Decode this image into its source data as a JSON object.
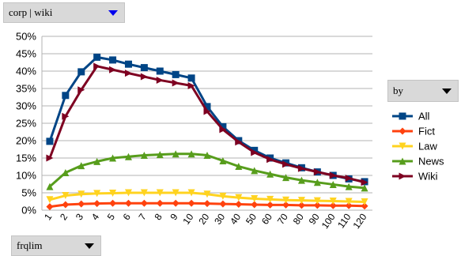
{
  "controls": {
    "corpus_select": {
      "value": "corp | wiki",
      "icon": "triangle-down-icon",
      "arrow_color": "#0000ee"
    },
    "by_select": {
      "value": "by",
      "icon": "triangle-down-icon"
    },
    "frqlim_select": {
      "value": "frqlim",
      "icon": "triangle-down-icon"
    }
  },
  "chart_data": {
    "type": "line",
    "title": "",
    "xlabel": "",
    "ylabel": "",
    "categories": [
      "1",
      "2",
      "3",
      "4",
      "5",
      "6",
      "7",
      "8",
      "9",
      "10",
      "20",
      "30",
      "40",
      "50",
      "60",
      "70",
      "80",
      "90",
      "100",
      "110",
      "120"
    ],
    "ylim": [
      0,
      50
    ],
    "yticks": [
      0,
      5,
      10,
      15,
      20,
      25,
      30,
      35,
      40,
      45,
      50
    ],
    "ytick_labels": [
      "0%",
      "5%",
      "10%",
      "15%",
      "20%",
      "25%",
      "30%",
      "35%",
      "40%",
      "45%",
      "50%"
    ],
    "grid": true,
    "legend": "right",
    "series": [
      {
        "name": "All",
        "color": "#004586",
        "marker": "square",
        "values": [
          19.8,
          33,
          39.8,
          44,
          43.2,
          42,
          41,
          40,
          39,
          38,
          29.8,
          24,
          20,
          17.2,
          15,
          13.6,
          12.2,
          11,
          10,
          9,
          8.2
        ]
      },
      {
        "name": "Fict",
        "color": "#ff420e",
        "marker": "diamond",
        "values": [
          1,
          1.6,
          1.8,
          1.9,
          2,
          2,
          2,
          2,
          2,
          2,
          1.9,
          1.8,
          1.7,
          1.6,
          1.5,
          1.5,
          1.4,
          1.4,
          1.3,
          1.3,
          1.2
        ]
      },
      {
        "name": "Law",
        "color": "#ffd320",
        "marker": "triangle-down",
        "values": [
          3,
          4.2,
          4.6,
          4.8,
          4.9,
          5,
          5,
          5,
          5,
          5,
          4.6,
          4,
          3.6,
          3.3,
          3.1,
          2.9,
          2.8,
          2.7,
          2.6,
          2.5,
          2.4
        ]
      },
      {
        "name": "News",
        "color": "#579d1c",
        "marker": "triangle-up",
        "values": [
          6.8,
          10.8,
          12.8,
          14,
          15,
          15.4,
          15.8,
          16,
          16.2,
          16.2,
          15.8,
          14.2,
          12.6,
          11.4,
          10.4,
          9.4,
          8.6,
          8,
          7.4,
          6.8,
          6.4
        ]
      },
      {
        "name": "Wiki",
        "color": "#7e0021",
        "marker": "arrow-right",
        "values": [
          15,
          27,
          34.6,
          41.4,
          40.4,
          39.4,
          38.4,
          37.4,
          36.6,
          35.8,
          28.4,
          23.2,
          19.6,
          16.6,
          14.6,
          13.2,
          12,
          11,
          10,
          9.2,
          8
        ]
      }
    ]
  }
}
